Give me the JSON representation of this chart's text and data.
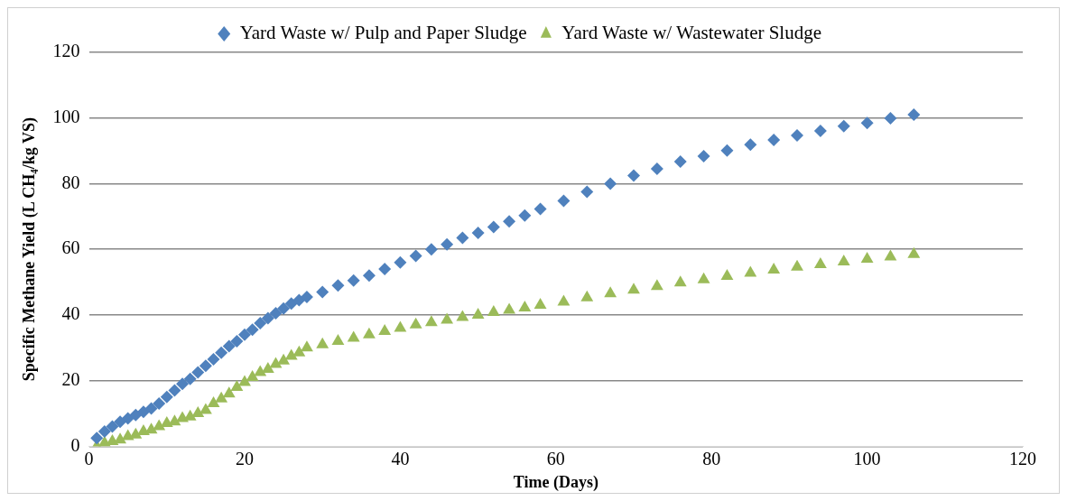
{
  "chart_data": {
    "type": "scatter",
    "xlabel": "Time (Days)",
    "ylabel": "Specific Methane Yield (L CH₄/kg VS)",
    "xlim": [
      0,
      120
    ],
    "xticks": [
      0,
      20,
      40,
      60,
      80,
      100,
      120
    ],
    "ylim": [
      0,
      120
    ],
    "yticks": [
      0,
      20,
      40,
      60,
      80,
      100,
      120
    ],
    "grid": "y",
    "legend": "top",
    "series": [
      {
        "name": "Yard Waste w/ Pulp and Paper Sludge",
        "color": "#4f81bd",
        "marker": "diamond",
        "x": [
          1,
          2,
          3,
          4,
          5,
          6,
          7,
          8,
          9,
          10,
          11,
          12,
          13,
          14,
          15,
          16,
          17,
          18,
          19,
          20,
          21,
          22,
          23,
          24,
          25,
          26,
          27,
          28,
          30,
          32,
          34,
          36,
          38,
          40,
          42,
          44,
          46,
          48,
          50,
          52,
          54,
          56,
          58,
          61,
          64,
          67,
          70,
          73,
          76,
          79,
          82,
          85,
          88,
          91,
          94,
          97,
          100,
          103,
          106
        ],
        "values": [
          2.5,
          4.5,
          6,
          7.5,
          8.5,
          9.5,
          10.5,
          11.5,
          13,
          15,
          17,
          19,
          20.5,
          22.5,
          24.5,
          26.5,
          28.5,
          30.5,
          32,
          34,
          35.5,
          37.5,
          39,
          40.5,
          42,
          43.5,
          44.5,
          45.5,
          47,
          49,
          50.5,
          52,
          54,
          56,
          58,
          60,
          61.5,
          63.5,
          65,
          66.8,
          68.5,
          70.3,
          72.3,
          74.8,
          77.5,
          80,
          82.5,
          84.5,
          86.7,
          88.4,
          90.1,
          91.9,
          93.3,
          94.7,
          96.1,
          97.5,
          98.5,
          99.9,
          101
        ]
      },
      {
        "name": "Yard Waste w/ Wastewater Sludge",
        "color": "#9bbb59",
        "marker": "triangle",
        "x": [
          1,
          2,
          3,
          4,
          5,
          6,
          7,
          8,
          9,
          10,
          11,
          12,
          13,
          14,
          15,
          16,
          17,
          18,
          19,
          20,
          21,
          22,
          23,
          24,
          25,
          26,
          27,
          28,
          30,
          32,
          34,
          36,
          38,
          40,
          42,
          44,
          46,
          48,
          50,
          52,
          54,
          56,
          58,
          61,
          64,
          67,
          70,
          73,
          76,
          79,
          82,
          85,
          88,
          91,
          94,
          97,
          100,
          103,
          106
        ],
        "values": [
          0,
          1,
          1.5,
          2,
          3,
          3.5,
          4.5,
          5,
          6,
          7,
          7.5,
          8.5,
          9,
          10,
          11,
          13,
          14.5,
          16,
          18,
          19.5,
          21,
          22.5,
          23.5,
          25,
          26,
          27.5,
          28.5,
          30,
          31,
          32,
          33,
          34,
          35,
          36,
          37,
          37.7,
          38.5,
          39.3,
          40,
          40.8,
          41.5,
          42.2,
          43,
          44,
          45.3,
          46.5,
          47.6,
          48.7,
          49.8,
          50.8,
          51.8,
          52.8,
          53.7,
          54.6,
          55.4,
          56.2,
          57,
          57.7,
          58.5
        ]
      }
    ]
  }
}
